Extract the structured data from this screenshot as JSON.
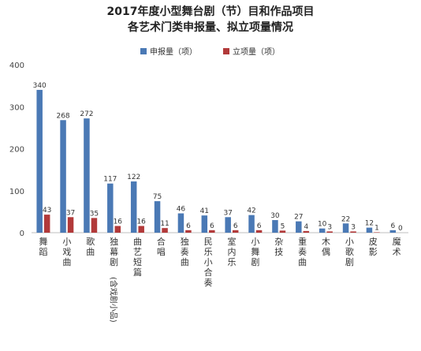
{
  "chart_data": {
    "type": "bar",
    "title_line1": "2017年度小型舞台剧（节）目和作品项目",
    "title_line2": "各艺术门类申报量、拟立项量情况",
    "categories": [
      "舞蹈",
      "小戏曲",
      "歌曲",
      "独幕剧(含戏剧小品)",
      "曲艺短篇",
      "合唱",
      "独奏曲",
      "民乐小合奏",
      "室内乐",
      "小舞剧",
      "杂技",
      "重奏曲",
      "木偶",
      "小歌剧",
      "皮影",
      "魔术"
    ],
    "series": [
      {
        "name": "申报量（项）",
        "color": "#4a79b5",
        "values": [
          340,
          268,
          272,
          117,
          122,
          75,
          46,
          41,
          37,
          42,
          30,
          27,
          10,
          22,
          12,
          6
        ]
      },
      {
        "name": "立项量（项）",
        "color": "#b23a3a",
        "values": [
          43,
          37,
          35,
          16,
          16,
          11,
          6,
          6,
          6,
          6,
          5,
          4,
          3,
          3,
          1,
          0
        ]
      }
    ],
    "ylim": [
      0,
      400
    ],
    "yticks": [
      0,
      100,
      200,
      300,
      400
    ],
    "grid": false,
    "legend_position": "top-center"
  }
}
